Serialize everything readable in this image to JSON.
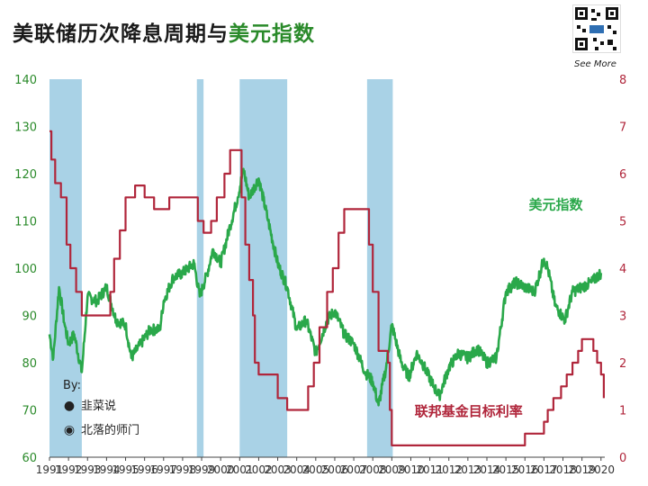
{
  "title": {
    "main": "美联储历次降息周期与",
    "highlight": "美元指数"
  },
  "qr": {
    "label": "See More"
  },
  "watermark": {
    "by": "By:",
    "items": [
      {
        "icon": "wechat-icon",
        "text": "韭菜说"
      },
      {
        "icon": "weibo-icon",
        "text": "北落的师门"
      }
    ]
  },
  "colors": {
    "dxy": "#2aa84a",
    "rate": "#b0263b",
    "band": "#a9d2e6",
    "left_axis": "#2a8a2a",
    "right_axis": "#b0263b"
  },
  "chart_data": {
    "type": "line",
    "x_ticks": [
      "1991",
      "1992",
      "1993",
      "1994",
      "1995",
      "1996",
      "1997",
      "1998",
      "1999",
      "2000",
      "2001",
      "2002",
      "2003",
      "2004",
      "2005",
      "2006",
      "2007",
      "2008",
      "2009",
      "2010",
      "2011",
      "2012",
      "2013",
      "2014",
      "2015",
      "2016",
      "2017",
      "2018",
      "2019",
      "2020"
    ],
    "xlim": [
      1991,
      2020.2
    ],
    "ylim_left": [
      60,
      140
    ],
    "y_ticks_left": [
      "60",
      "70",
      "80",
      "90",
      "100",
      "110",
      "120",
      "130",
      "140"
    ],
    "ylim_right": [
      0,
      8
    ],
    "y_ticks_right": [
      "0",
      "1",
      "2",
      "3",
      "4",
      "5",
      "6",
      "7",
      "8"
    ],
    "grid": false,
    "cut_periods": [
      [
        1991.0,
        1992.7
      ],
      [
        1998.75,
        1999.1
      ],
      [
        2001.0,
        2003.5
      ],
      [
        2007.7,
        2009.05
      ]
    ],
    "series": [
      {
        "name": "美元指数",
        "axis": "left",
        "points": [
          [
            1991.0,
            86
          ],
          [
            1991.2,
            81
          ],
          [
            1991.5,
            96
          ],
          [
            1991.8,
            88
          ],
          [
            1992.0,
            84
          ],
          [
            1992.3,
            86
          ],
          [
            1992.7,
            78
          ],
          [
            1993.0,
            94
          ],
          [
            1993.5,
            93
          ],
          [
            1994.0,
            96
          ],
          [
            1994.5,
            89
          ],
          [
            1995.0,
            88
          ],
          [
            1995.3,
            81
          ],
          [
            1995.8,
            84
          ],
          [
            1996.3,
            87
          ],
          [
            1996.8,
            87
          ],
          [
            1997.0,
            93
          ],
          [
            1997.5,
            98
          ],
          [
            1998.0,
            99
          ],
          [
            1998.6,
            101
          ],
          [
            1998.9,
            94
          ],
          [
            1999.3,
            99
          ],
          [
            1999.6,
            104
          ],
          [
            2000.0,
            101
          ],
          [
            2000.5,
            109
          ],
          [
            2000.9,
            115
          ],
          [
            2001.2,
            121
          ],
          [
            2001.5,
            115
          ],
          [
            2002.0,
            119
          ],
          [
            2002.5,
            110
          ],
          [
            2003.0,
            101
          ],
          [
            2003.5,
            96
          ],
          [
            2004.0,
            87
          ],
          [
            2004.5,
            89
          ],
          [
            2005.0,
            82
          ],
          [
            2005.6,
            89
          ],
          [
            2006.0,
            91
          ],
          [
            2006.5,
            86
          ],
          [
            2007.0,
            84
          ],
          [
            2007.6,
            78
          ],
          [
            2008.0,
            76
          ],
          [
            2008.3,
            71
          ],
          [
            2008.7,
            79
          ],
          [
            2009.0,
            88
          ],
          [
            2009.5,
            80
          ],
          [
            2009.9,
            77
          ],
          [
            2010.3,
            82
          ],
          [
            2010.6,
            80
          ],
          [
            2011.2,
            75
          ],
          [
            2011.5,
            73
          ],
          [
            2012.0,
            79
          ],
          [
            2012.5,
            82
          ],
          [
            2013.0,
            81
          ],
          [
            2013.5,
            83
          ],
          [
            2014.0,
            80
          ],
          [
            2014.5,
            81
          ],
          [
            2015.0,
            95
          ],
          [
            2015.5,
            97
          ],
          [
            2016.0,
            96
          ],
          [
            2016.5,
            95
          ],
          [
            2017.0,
            102
          ],
          [
            2017.2,
            100
          ],
          [
            2017.6,
            92
          ],
          [
            2018.1,
            89
          ],
          [
            2018.5,
            95
          ],
          [
            2019.0,
            96
          ],
          [
            2019.5,
            97
          ],
          [
            2020.0,
            99
          ]
        ]
      },
      {
        "name": "联邦基金目标利率",
        "axis": "right",
        "points": [
          [
            1991.0,
            6.9
          ],
          [
            1991.1,
            6.3
          ],
          [
            1991.3,
            5.8
          ],
          [
            1991.6,
            5.5
          ],
          [
            1991.9,
            4.5
          ],
          [
            1992.1,
            4.0
          ],
          [
            1992.4,
            3.5
          ],
          [
            1992.7,
            3.0
          ],
          [
            1994.0,
            3.0
          ],
          [
            1994.2,
            3.5
          ],
          [
            1994.4,
            4.2
          ],
          [
            1994.7,
            4.8
          ],
          [
            1995.0,
            5.5
          ],
          [
            1995.5,
            5.75
          ],
          [
            1996.0,
            5.5
          ],
          [
            1996.5,
            5.25
          ],
          [
            1997.2,
            5.25
          ],
          [
            1997.3,
            5.5
          ],
          [
            1998.75,
            5.5
          ],
          [
            1998.8,
            5.0
          ],
          [
            1999.1,
            4.75
          ],
          [
            1999.5,
            5.0
          ],
          [
            1999.8,
            5.5
          ],
          [
            2000.2,
            6.0
          ],
          [
            2000.5,
            6.5
          ],
          [
            2001.0,
            6.5
          ],
          [
            2001.1,
            5.5
          ],
          [
            2001.3,
            4.5
          ],
          [
            2001.5,
            3.75
          ],
          [
            2001.7,
            3.0
          ],
          [
            2001.8,
            2.0
          ],
          [
            2002.0,
            1.75
          ],
          [
            2003.0,
            1.25
          ],
          [
            2003.5,
            1.0
          ],
          [
            2004.4,
            1.0
          ],
          [
            2004.6,
            1.5
          ],
          [
            2004.9,
            2.0
          ],
          [
            2005.2,
            2.75
          ],
          [
            2005.6,
            3.5
          ],
          [
            2005.9,
            4.0
          ],
          [
            2006.2,
            4.75
          ],
          [
            2006.5,
            5.25
          ],
          [
            2007.6,
            5.25
          ],
          [
            2007.8,
            4.5
          ],
          [
            2008.0,
            3.5
          ],
          [
            2008.3,
            2.25
          ],
          [
            2008.8,
            2.0
          ],
          [
            2008.9,
            1.0
          ],
          [
            2009.0,
            0.25
          ],
          [
            2015.9,
            0.25
          ],
          [
            2016.0,
            0.5
          ],
          [
            2016.9,
            0.5
          ],
          [
            2017.0,
            0.75
          ],
          [
            2017.2,
            1.0
          ],
          [
            2017.5,
            1.25
          ],
          [
            2017.9,
            1.5
          ],
          [
            2018.2,
            1.75
          ],
          [
            2018.5,
            2.0
          ],
          [
            2018.8,
            2.25
          ],
          [
            2019.0,
            2.5
          ],
          [
            2019.5,
            2.5
          ],
          [
            2019.6,
            2.25
          ],
          [
            2019.8,
            2.0
          ],
          [
            2020.0,
            1.75
          ],
          [
            2020.15,
            1.25
          ]
        ]
      }
    ],
    "annotations": [
      {
        "text": "美元指数",
        "series": "美元指数",
        "x": 2016.2,
        "y": 112.5,
        "axis": "left"
      },
      {
        "text": "联邦基金目标利率",
        "series": "联邦基金目标利率",
        "x": 2010.2,
        "y": 68.8,
        "axis": "left"
      }
    ]
  }
}
